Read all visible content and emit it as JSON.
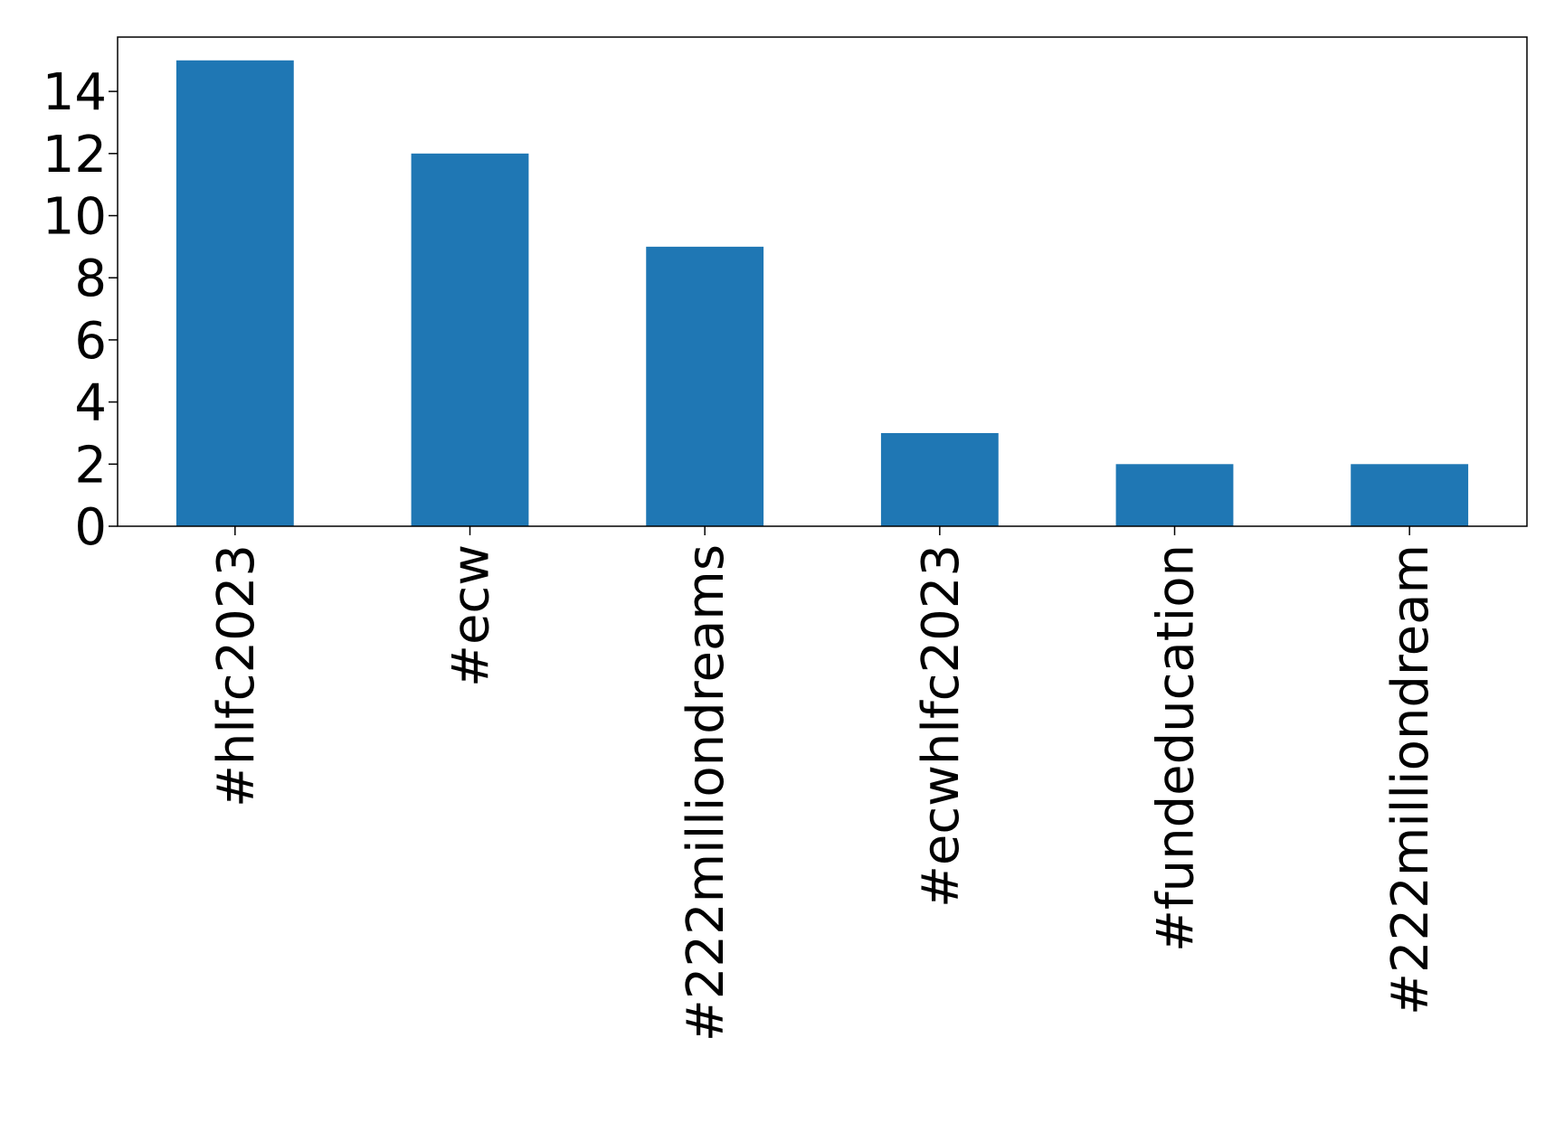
{
  "chart_data": {
    "type": "bar",
    "categories": [
      "#hlfc2023",
      "#ecw",
      "#222milliondreams",
      "#ecwhlfc2023",
      "#fundeducation",
      "#222milliondream"
    ],
    "values": [
      15,
      12,
      9,
      3,
      2,
      2
    ],
    "title": "",
    "xlabel": "",
    "ylabel": "",
    "ylim": [
      0,
      15.75
    ],
    "yticks": [
      0,
      2,
      4,
      6,
      8,
      10,
      12,
      14
    ],
    "grid": false,
    "bar_color": "#1f77b4"
  }
}
